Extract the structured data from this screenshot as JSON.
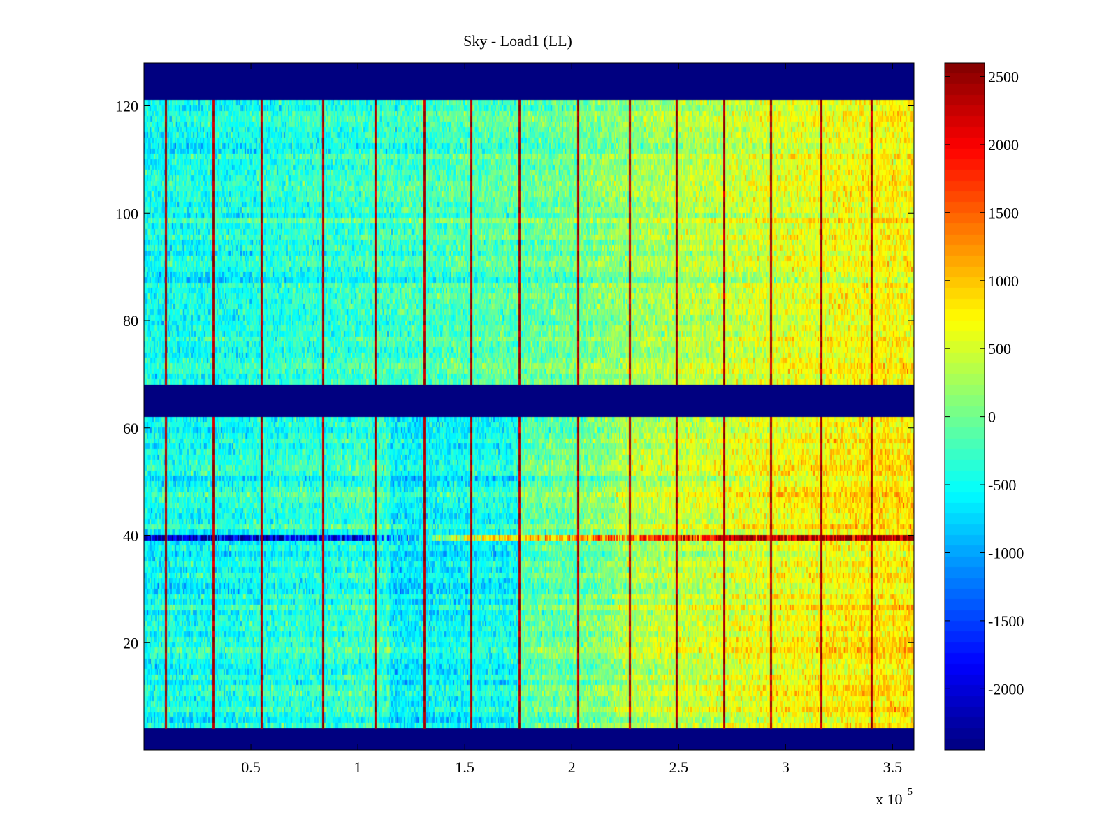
{
  "chart_data": {
    "type": "heatmap",
    "title": "Sky - Load1 (LL)",
    "xlabel": "",
    "ylabel": "",
    "x_multiplier_label": "x 10",
    "x_multiplier_exponent": "5",
    "xlim": [
      0,
      3.6
    ],
    "ylim": [
      0,
      128
    ],
    "x_ticks": [
      0.5,
      1,
      1.5,
      2,
      2.5,
      3,
      3.5
    ],
    "x_tick_labels": [
      "0.5",
      "1",
      "1.5",
      "2",
      "2.5",
      "3",
      "3.5"
    ],
    "y_ticks": [
      20,
      40,
      60,
      80,
      100,
      120
    ],
    "y_tick_labels": [
      "20",
      "40",
      "60",
      "80",
      "100",
      "120"
    ],
    "colormap": "jet",
    "colorbar": {
      "range": [
        -2450,
        2600
      ],
      "ticks": [
        -2000,
        -1500,
        -1000,
        -500,
        0,
        500,
        1000,
        1500,
        2000,
        2500
      ],
      "tick_labels": [
        "-2000",
        "-1500",
        "-1000",
        "-500",
        "0",
        "500",
        "1000",
        "1500",
        "2000",
        "2500"
      ]
    },
    "masked_row_bands": [
      {
        "y_from": 0,
        "y_to": 4,
        "value": -2450
      },
      {
        "y_from": 62,
        "y_to": 68,
        "value": -2450
      },
      {
        "y_from": 121,
        "y_to": 128,
        "value": -2450
      }
    ],
    "vertical_stripe_x": [
      0.1,
      0.325,
      0.55,
      0.835,
      1.08,
      1.31,
      1.53,
      1.755,
      2.03,
      2.27,
      2.49,
      2.71,
      2.93,
      3.165,
      3.4
    ],
    "stripe_value": 2400,
    "bad_channel_y": 39,
    "background_trend_x": [
      0,
      0.5,
      1.0,
      1.5,
      2.0,
      2.2,
      2.5,
      3.0,
      3.6
    ],
    "background_trend_value": [
      -500,
      -420,
      -300,
      -180,
      -30,
      150,
      300,
      550,
      750
    ],
    "bad_channel_trend_x": [
      0,
      1.0,
      1.5,
      2.0,
      2.6,
      2.8,
      3.6
    ],
    "bad_channel_trend_value": [
      -2200,
      -1800,
      500,
      1200,
      1800,
      2400,
      2400
    ]
  }
}
